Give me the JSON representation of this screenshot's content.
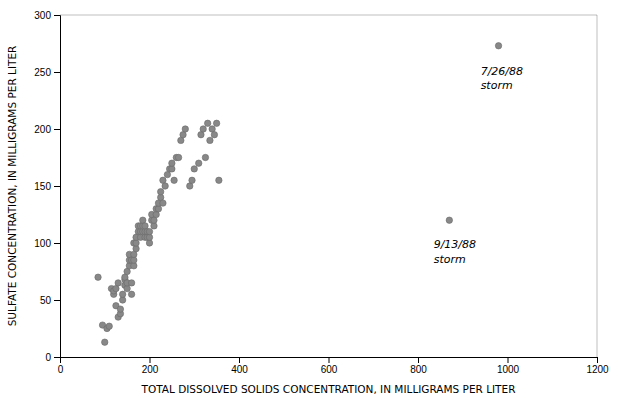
{
  "chart_data": {
    "type": "scatter",
    "xlabel": "TOTAL DISSOLVED SOLIDS CONCENTRATION, IN MILLIGRAMS PER LITER",
    "ylabel": "SULFATE CONCENTRATION, IN MILLIGRAMS PER LITER",
    "xlim": [
      0,
      1200
    ],
    "ylim": [
      0,
      300
    ],
    "xticks": [
      0,
      200,
      400,
      600,
      800,
      1000,
      1200
    ],
    "yticks": [
      0,
      50,
      100,
      150,
      200,
      250,
      300
    ],
    "color": "#888888",
    "x": [
      85,
      95,
      100,
      105,
      110,
      115,
      120,
      120,
      125,
      125,
      130,
      130,
      135,
      135,
      140,
      140,
      145,
      145,
      145,
      150,
      150,
      150,
      155,
      155,
      155,
      160,
      160,
      160,
      165,
      165,
      165,
      165,
      170,
      170,
      170,
      175,
      175,
      180,
      180,
      180,
      185,
      185,
      185,
      190,
      190,
      190,
      195,
      195,
      200,
      200,
      200,
      205,
      205,
      210,
      210,
      215,
      215,
      220,
      220,
      225,
      225,
      230,
      230,
      235,
      240,
      245,
      250,
      250,
      255,
      260,
      265,
      270,
      275,
      280,
      290,
      295,
      300,
      310,
      315,
      320,
      325,
      330,
      335,
      340,
      345,
      350,
      355,
      980,
      870
    ],
    "y": [
      70,
      28,
      13,
      25,
      27,
      60,
      55,
      58,
      45,
      60,
      35,
      65,
      38,
      42,
      50,
      55,
      63,
      68,
      70,
      60,
      65,
      75,
      80,
      85,
      90,
      55,
      65,
      85,
      80,
      85,
      90,
      100,
      95,
      100,
      105,
      110,
      115,
      105,
      110,
      115,
      110,
      115,
      120,
      105,
      110,
      115,
      105,
      110,
      100,
      105,
      110,
      120,
      125,
      115,
      120,
      125,
      130,
      130,
      135,
      140,
      145,
      135,
      155,
      150,
      160,
      165,
      165,
      170,
      155,
      175,
      175,
      190,
      195,
      200,
      150,
      155,
      165,
      170,
      195,
      200,
      175,
      205,
      190,
      200,
      195,
      205,
      155,
      273,
      120
    ],
    "annotations": [
      {
        "text": "7/26/88\nstorm",
        "x": 940,
        "y": 256
      },
      {
        "text": "9/13/88\nstorm",
        "x": 835,
        "y": 104
      }
    ]
  }
}
